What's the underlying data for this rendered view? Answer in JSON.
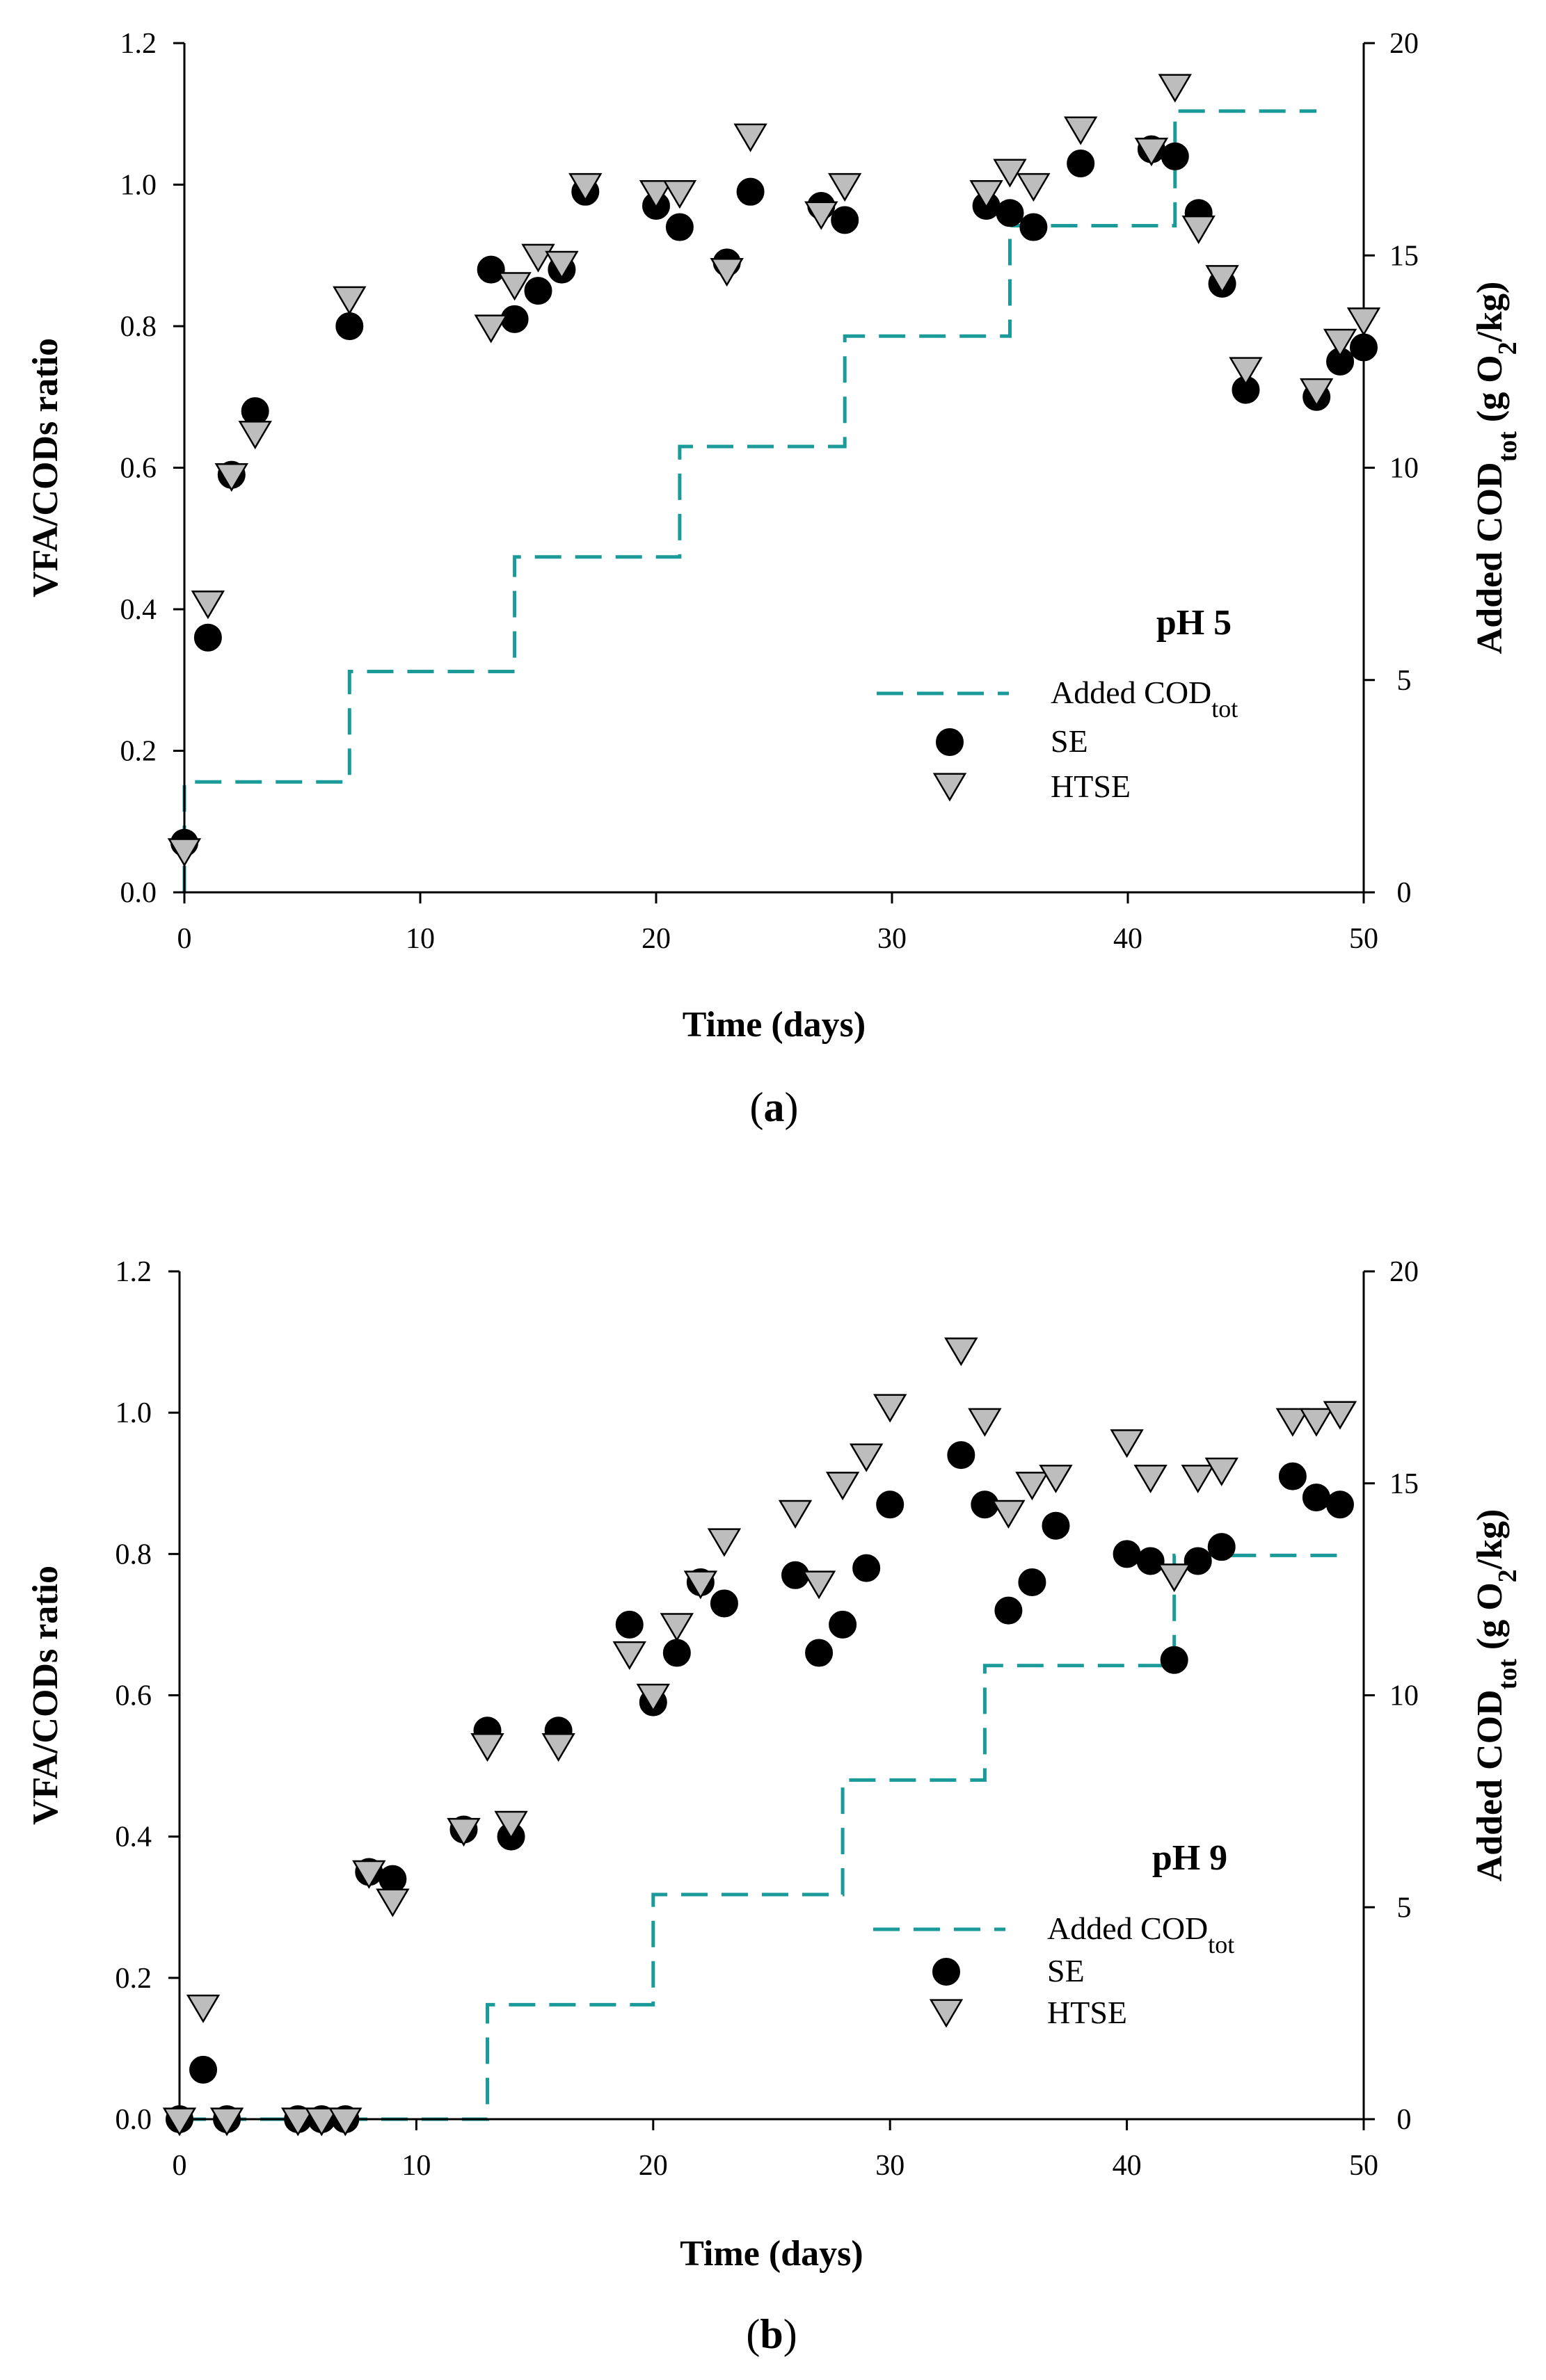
{
  "colors": {
    "added_cod": "#1b9a9a",
    "se": "#000000",
    "htse": "#bdbdbd"
  },
  "legend": {
    "added": "Added COD",
    "added_sub": "tot",
    "se": "SE",
    "htse": "HTSE"
  },
  "chart_data": [
    {
      "type": "scatter",
      "panel_label_open": "(",
      "panel_label": "a",
      "panel_label_close": ")",
      "condition_label": "pH 5",
      "xlabel": "Time (days)",
      "ylabel": "VFA/CODs ratio",
      "ylabel_right": "Added CODtot (g O2/kg)",
      "xlim": [
        0,
        50
      ],
      "ylim": [
        0,
        1.2
      ],
      "y2lim": [
        0,
        20
      ],
      "xticks": [
        0,
        10,
        20,
        30,
        40,
        50
      ],
      "yticks": [
        "0.0",
        "0.2",
        "0.4",
        "0.6",
        "0.8",
        "1.0",
        "1.2"
      ],
      "y2ticks": [
        0,
        5,
        10,
        15,
        20
      ],
      "legend_position": "lower-right",
      "series": [
        {
          "name": "SE",
          "marker": "circle",
          "x": [
            0,
            1,
            2,
            3,
            7,
            13,
            14,
            15,
            16,
            17,
            20,
            21,
            23,
            24,
            27,
            28,
            34,
            35,
            36,
            38,
            41,
            42,
            43,
            44,
            45,
            48,
            49,
            50
          ],
          "y": [
            0.07,
            0.36,
            0.59,
            0.68,
            0.8,
            0.88,
            0.81,
            0.85,
            0.88,
            0.99,
            0.97,
            0.94,
            0.89,
            0.99,
            0.97,
            0.95,
            0.97,
            0.96,
            0.94,
            1.03,
            1.05,
            1.04,
            0.96,
            0.86,
            0.71,
            0.7,
            0.75,
            0.77
          ]
        },
        {
          "name": "HTSE",
          "marker": "triangle-down",
          "x": [
            0,
            1,
            2,
            3,
            7,
            13,
            14,
            15,
            16,
            17,
            20,
            21,
            23,
            24,
            27,
            28,
            34,
            35,
            36,
            38,
            41,
            42,
            43,
            44,
            45,
            48,
            49,
            50
          ],
          "y": [
            0.06,
            0.41,
            0.59,
            0.65,
            0.84,
            0.8,
            0.86,
            0.9,
            0.89,
            1.0,
            0.99,
            0.99,
            0.88,
            1.07,
            0.96,
            1.0,
            0.99,
            1.02,
            1.0,
            1.08,
            1.05,
            1.14,
            0.94,
            0.87,
            0.74,
            0.71,
            0.78,
            0.81
          ]
        },
        {
          "name": "Added CODtot",
          "axis": "right",
          "style": "dashed-step",
          "x": [
            0,
            0,
            7,
            7,
            14,
            14,
            21,
            21,
            28,
            28,
            35,
            35,
            42,
            42,
            48
          ],
          "y": [
            0,
            2.6,
            2.6,
            5.2,
            5.2,
            7.9,
            7.9,
            10.5,
            10.5,
            13.1,
            13.1,
            15.7,
            15.7,
            18.4,
            18.4
          ]
        }
      ]
    },
    {
      "type": "scatter",
      "panel_label_open": "(",
      "panel_label": "b",
      "panel_label_close": ")",
      "condition_label": "pH 9",
      "xlabel": "Time (days)",
      "ylabel": "VFA/CODs ratio",
      "ylabel_right": "Added CODtot (g O2/kg)",
      "xlim": [
        0,
        50
      ],
      "ylim": [
        0,
        1.2
      ],
      "y2lim": [
        0,
        20
      ],
      "xticks": [
        0,
        10,
        20,
        30,
        40,
        50
      ],
      "yticks": [
        "0.0",
        "0.2",
        "0.4",
        "0.6",
        "0.8",
        "1.0",
        "1.2"
      ],
      "y2ticks": [
        0,
        5,
        10,
        15,
        20
      ],
      "legend_position": "lower-right",
      "series": [
        {
          "name": "SE",
          "marker": "circle",
          "x": [
            0,
            1,
            2,
            5,
            6,
            7,
            8,
            9,
            12,
            13,
            14,
            16,
            19,
            20,
            21,
            22,
            23,
            26,
            27,
            28,
            29,
            30,
            33,
            34,
            35,
            36,
            37,
            40,
            41,
            42,
            43,
            44,
            47,
            48,
            49
          ],
          "y": [
            0.0,
            0.07,
            0.0,
            0.0,
            0.0,
            0.0,
            0.35,
            0.34,
            0.41,
            0.55,
            0.4,
            0.55,
            0.7,
            0.59,
            0.66,
            0.76,
            0.73,
            0.77,
            0.66,
            0.7,
            0.78,
            0.87,
            0.94,
            0.87,
            0.72,
            0.76,
            0.84,
            0.8,
            0.79,
            0.65,
            0.79,
            0.81,
            0.91,
            0.88,
            0.87
          ]
        },
        {
          "name": "HTSE",
          "marker": "triangle-down",
          "x": [
            0,
            1,
            2,
            5,
            6,
            7,
            8,
            9,
            12,
            13,
            14,
            16,
            19,
            20,
            21,
            22,
            23,
            26,
            27,
            28,
            29,
            30,
            33,
            34,
            35,
            36,
            37,
            40,
            41,
            42,
            43,
            44,
            47,
            48,
            49
          ],
          "y": [
            0.0,
            0.16,
            0.0,
            0.0,
            0.0,
            0.0,
            0.35,
            0.31,
            0.41,
            0.53,
            0.42,
            0.53,
            0.66,
            0.6,
            0.7,
            0.76,
            0.82,
            0.86,
            0.76,
            0.9,
            0.94,
            1.01,
            1.09,
            0.99,
            0.86,
            0.9,
            0.91,
            0.96,
            0.91,
            0.77,
            0.91,
            0.92,
            0.99,
            0.99,
            1.0
          ]
        },
        {
          "name": "Added CODtot",
          "axis": "right",
          "style": "dashed-step",
          "x": [
            0,
            13,
            13,
            20,
            20,
            28,
            28,
            34,
            34,
            42,
            42,
            49
          ],
          "y": [
            0,
            0,
            2.7,
            2.7,
            5.3,
            5.3,
            8.0,
            8.0,
            10.7,
            10.7,
            13.3,
            13.3
          ]
        }
      ]
    }
  ]
}
